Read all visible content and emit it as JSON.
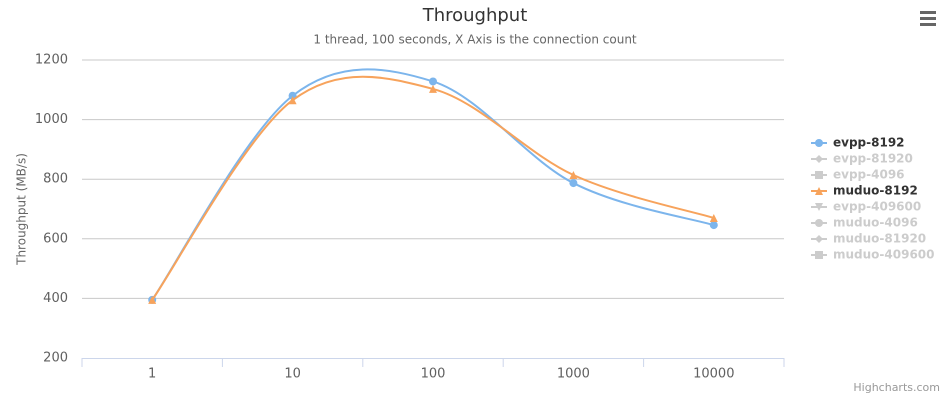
{
  "chart_data": {
    "type": "line",
    "title": "Throughput",
    "subtitle": "1 thread, 100 seconds, X Axis is the connection count",
    "y_label": "Throughput (MB/s)",
    "credits": "Highcharts.com",
    "categories": [
      "1",
      "10",
      "100",
      "1000",
      "10000"
    ],
    "ylim": [
      200,
      1200
    ],
    "yticks": [
      200,
      400,
      600,
      800,
      1000,
      1200
    ],
    "grid": true,
    "legend": "right",
    "series": [
      {
        "name": "evpp-8192",
        "color": "#7cb5ec",
        "marker": "circle",
        "visible": true,
        "values": [
          395,
          1080,
          1128,
          787,
          646
        ]
      },
      {
        "name": "evpp-81920",
        "color": "#434348",
        "marker": "diamond",
        "visible": false,
        "values": [
          null,
          null,
          null,
          null,
          null
        ]
      },
      {
        "name": "evpp-4096",
        "color": "#90ed7d",
        "marker": "square",
        "visible": false,
        "values": [
          null,
          null,
          null,
          null,
          null
        ]
      },
      {
        "name": "muduo-8192",
        "color": "#f7a35c",
        "marker": "triangle",
        "visible": true,
        "values": [
          395,
          1065,
          1103,
          814,
          670
        ]
      },
      {
        "name": "evpp-409600",
        "color": "#8085e9",
        "marker": "triangle-down",
        "visible": false,
        "values": [
          null,
          null,
          null,
          null,
          null
        ]
      },
      {
        "name": "muduo-4096",
        "color": "#f15c80",
        "marker": "circle",
        "visible": false,
        "values": [
          null,
          null,
          null,
          null,
          null
        ]
      },
      {
        "name": "muduo-81920",
        "color": "#e4d354",
        "marker": "diamond",
        "visible": false,
        "values": [
          null,
          null,
          null,
          null,
          null
        ]
      },
      {
        "name": "muduo-409600",
        "color": "#2b908f",
        "marker": "square",
        "visible": false,
        "values": [
          null,
          null,
          null,
          null,
          null
        ]
      }
    ]
  }
}
